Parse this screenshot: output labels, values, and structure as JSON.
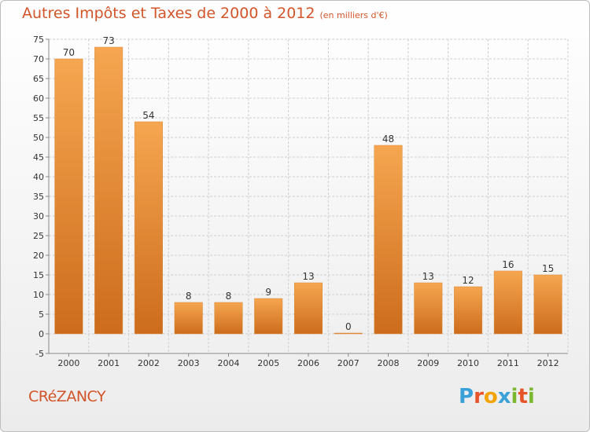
{
  "title": "Autres Impôts et Taxes de 2000 à 2012",
  "subtitle": "(en milliers d'€)",
  "commune": "CRéZANCY",
  "logo": {
    "letters": [
      "P",
      "r",
      "o",
      "x",
      "i",
      "t",
      "i"
    ],
    "colors": [
      "#3aa0d8",
      "#e8542a",
      "#f2a300",
      "#3aa0d8",
      "#7cb82f",
      "#e8542a",
      "#7cb82f"
    ]
  },
  "colors": {
    "bar": "#f0913a",
    "bar_dark": "#c96818",
    "title": "#d2552a",
    "grid": "#cfcfcf"
  },
  "chart_data": {
    "type": "bar",
    "categories": [
      "2000",
      "2001",
      "2002",
      "2003",
      "2004",
      "2005",
      "2006",
      "2007",
      "2008",
      "2009",
      "2010",
      "2011",
      "2012"
    ],
    "values": [
      70,
      73,
      54,
      8,
      8,
      9,
      13,
      0,
      48,
      13,
      12,
      16,
      15
    ],
    "value_labels": [
      "70",
      "73",
      "54",
      "8",
      "8",
      "9",
      "13",
      "0",
      "48",
      "13",
      "12",
      "16",
      "15"
    ],
    "title": "Autres Impôts et Taxes de 2000 à 2012",
    "subtitle": "(en milliers d'€)",
    "ylim": [
      -5,
      75
    ],
    "yticks": [
      -5,
      0,
      5,
      10,
      15,
      20,
      25,
      30,
      35,
      40,
      45,
      50,
      55,
      60,
      65,
      70,
      75
    ],
    "ytick_labels": [
      "-5",
      "0",
      "5",
      "10",
      "15",
      "20",
      "25",
      "30",
      "35",
      "40",
      "45",
      "50",
      "55",
      "60",
      "65",
      "70",
      "75"
    ],
    "grid": true
  }
}
